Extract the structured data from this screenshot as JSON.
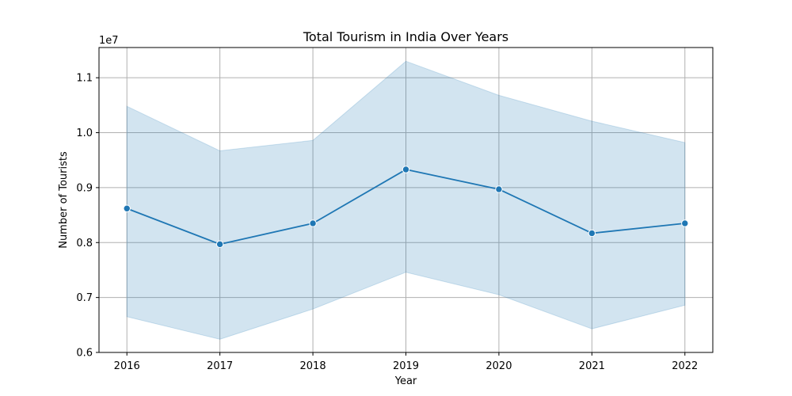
{
  "chart_data": {
    "type": "line",
    "title": "Total Tourism in India Over Years",
    "xlabel": "Year",
    "ylabel": "Number of Tourists",
    "offset_label": "1e7",
    "grid": true,
    "x": [
      2016,
      2017,
      2018,
      2019,
      2020,
      2021,
      2022
    ],
    "x_tick_labels": [
      "2016",
      "2017",
      "2018",
      "2019",
      "2020",
      "2021",
      "2022"
    ],
    "xlim": [
      2015.7,
      2022.3
    ],
    "ylim": [
      0.6,
      1.155
    ],
    "y_ticks": [
      0.6,
      0.7,
      0.8,
      0.9,
      1.0,
      1.1
    ],
    "y_tick_labels": [
      "0.6",
      "0.7",
      "0.8",
      "0.9",
      "1.0",
      "1.1"
    ],
    "series": [
      {
        "name": "Total Tourism",
        "color": "#1f77b4",
        "values": [
          0.862,
          0.797,
          0.835,
          0.933,
          0.897,
          0.817,
          0.835
        ],
        "ci_lower": [
          0.665,
          0.624,
          0.679,
          0.746,
          0.705,
          0.643,
          0.686
        ],
        "ci_upper": [
          1.048,
          0.967,
          0.986,
          1.13,
          1.068,
          1.021,
          0.982
        ],
        "band_color": "#1f77b4"
      }
    ]
  }
}
